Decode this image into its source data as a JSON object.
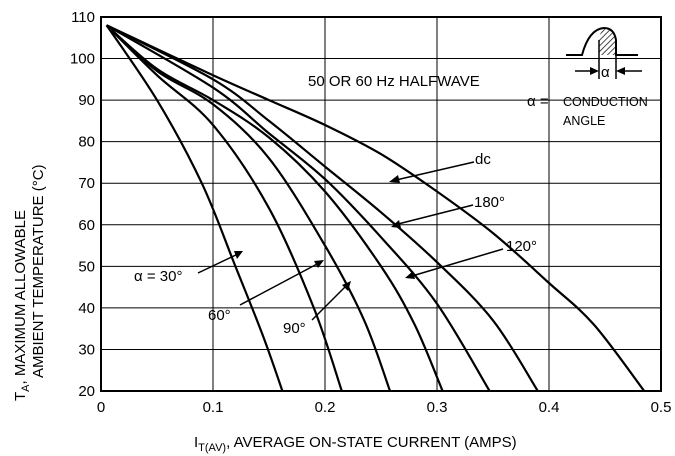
{
  "chart_data": {
    "type": "line",
    "title": "",
    "xlabel_main": "I",
    "xlabel_sub": "T(AV)",
    "xlabel_rest": ", AVERAGE ON-STATE CURRENT (AMPS)",
    "ylabel_line1_main": "T",
    "ylabel_line1_sub": "A",
    "ylabel_line1_rest": ", MAXIMUM ALLOWABLE",
    "ylabel_line2": "AMBIENT TEMPERATURE (°C)",
    "xlim": [
      0,
      0.5
    ],
    "ylim": [
      20,
      110
    ],
    "x_ticks": [
      "0",
      "0.1",
      "0.2",
      "0.3",
      "0.4",
      "0.5"
    ],
    "x_tick_values": [
      0,
      0.1,
      0.2,
      0.3,
      0.4,
      0.5
    ],
    "y_ticks": [
      "20",
      "30",
      "40",
      "50",
      "60",
      "70",
      "80",
      "90",
      "100",
      "110"
    ],
    "y_tick_values": [
      20,
      30,
      40,
      50,
      60,
      70,
      80,
      90,
      100,
      110
    ],
    "grid": true,
    "series": [
      {
        "name": "α = 30°",
        "x": [
          0.005,
          0.05,
          0.09,
          0.12,
          0.145,
          0.162
        ],
        "y": [
          108,
          90,
          70,
          50,
          33,
          20
        ]
      },
      {
        "name": "60°",
        "x": [
          0.005,
          0.05,
          0.1,
          0.15,
          0.19,
          0.215
        ],
        "y": [
          108,
          96,
          84,
          64,
          40,
          20
        ]
      },
      {
        "name": "90°",
        "x": [
          0.005,
          0.05,
          0.1,
          0.15,
          0.2,
          0.235,
          0.258
        ],
        "y": [
          108,
          97,
          89,
          76,
          55,
          37,
          20
        ]
      },
      {
        "name": "120°",
        "x": [
          0.005,
          0.1,
          0.15,
          0.2,
          0.25,
          0.3,
          0.347
        ],
        "y": [
          108,
          93,
          82,
          71,
          57,
          41,
          20
        ]
      },
      {
        "name": "180°",
        "x": [
          0.005,
          0.1,
          0.15,
          0.2,
          0.25,
          0.3,
          0.35,
          0.39
        ],
        "y": [
          108,
          95,
          85,
          74,
          63,
          51,
          37,
          20
        ]
      },
      {
        "name": "dc",
        "x": [
          0.005,
          0.1,
          0.15,
          0.2,
          0.25,
          0.3,
          0.35,
          0.4,
          0.44,
          0.485
        ],
        "y": [
          108,
          96,
          90,
          84,
          77,
          68,
          58,
          46,
          36,
          20
        ]
      },
      {
        "name": "",
        "x": [
          0.005,
          0.05,
          0.1,
          0.15,
          0.2,
          0.25,
          0.28,
          0.305
        ],
        "y": [
          108,
          97.5,
          90,
          81,
          68,
          50,
          36,
          20
        ]
      }
    ],
    "annotations": {
      "freq": "50 OR 60 Hz HALFWAVE",
      "alpha_eq": "α =",
      "conduction1": "CONDUCTION",
      "conduction2": "ANGLE",
      "alpha_symbol": "α",
      "label_dc": "dc",
      "label_180": "180°",
      "label_120": "120°",
      "label_90": "90°",
      "label_60": "60°",
      "label_30": "α = 30°"
    }
  }
}
